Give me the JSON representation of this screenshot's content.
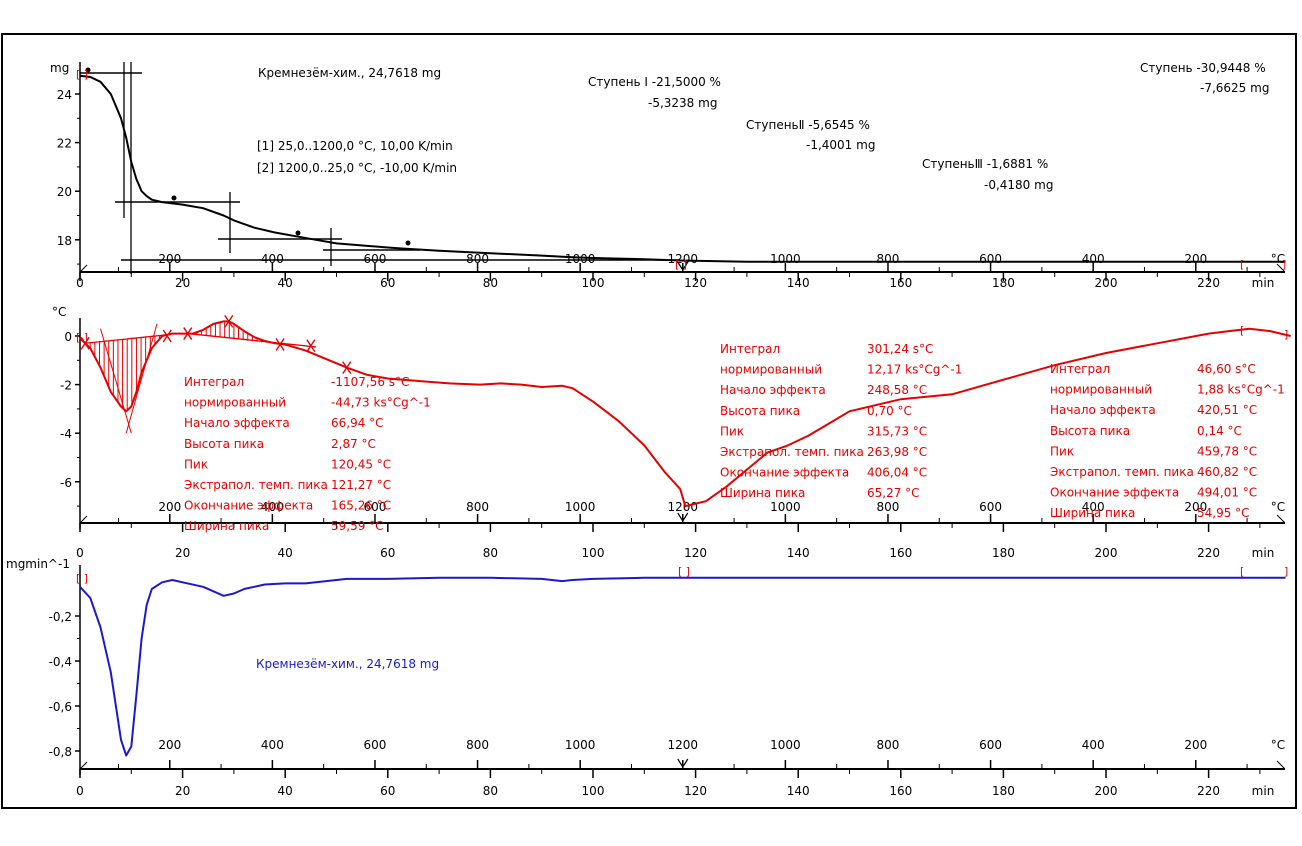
{
  "chart_data": [
    {
      "type": "line",
      "panel": "TG",
      "title": "Кремнезём-хим., 24,7618 mg",
      "ylabel": "mg",
      "xlabel": "min",
      "secondary_xlabel": "°C",
      "ylim": [
        16.6,
        25.2
      ],
      "xlim": [
        0,
        235
      ],
      "y_ticks": [
        {
          "v": 24,
          "label": "24"
        },
        {
          "v": 22,
          "label": "22"
        },
        {
          "v": 20,
          "label": "20"
        },
        {
          "v": 18,
          "label": "18"
        }
      ],
      "segments": [
        "[1] 25,0..1200,0 °C, 10,00 K/min",
        "[2] 1200,0..25,0 °C, -10,00 K/min"
      ],
      "steps": [
        {
          "label": "Ступень Ⅰ",
          "percent": "-21,5000 %",
          "mass": "-5,3238 mg"
        },
        {
          "label": "СтупеньⅡ",
          "percent": "-5,6545 %",
          "mass": "-1,4001 mg"
        },
        {
          "label": "СтупеньⅢ",
          "percent": "-1,6881 %",
          "mass": "-0,4180 mg"
        },
        {
          "label": "Ступень",
          "percent": "-30,9448 %",
          "mass": "-7,6625 mg"
        }
      ],
      "series": [
        {
          "name": "TG",
          "color": "#000000",
          "x": [
            0,
            2,
            4,
            6,
            8,
            9,
            10,
            11,
            12,
            13,
            14,
            16,
            18,
            20,
            24,
            28,
            30,
            34,
            38,
            42,
            46,
            50,
            56,
            62,
            70,
            80,
            90,
            96,
            100,
            110,
            117,
            130,
            160,
            200,
            235
          ],
          "y": [
            24.75,
            24.7,
            24.5,
            24.0,
            23.0,
            22.2,
            21.2,
            20.5,
            20.0,
            19.8,
            19.65,
            19.55,
            19.5,
            19.45,
            19.3,
            19.0,
            18.8,
            18.5,
            18.3,
            18.15,
            18.0,
            17.85,
            17.75,
            17.65,
            17.55,
            17.45,
            17.35,
            17.28,
            17.25,
            17.2,
            17.15,
            17.1,
            17.1,
            17.1,
            17.1
          ]
        }
      ]
    },
    {
      "type": "line",
      "panel": "DTA",
      "ylabel": "°C",
      "xlabel": "min",
      "secondary_xlabel": "°C",
      "ylim": [
        -7.8,
        1.0
      ],
      "xlim": [
        0,
        235
      ],
      "y_ticks": [
        {
          "v": 0,
          "label": "0"
        },
        {
          "v": -2,
          "label": "-2"
        },
        {
          "v": -4,
          "label": "-4"
        },
        {
          "v": -6,
          "label": "-6"
        }
      ],
      "series": [
        {
          "name": "DTA",
          "color": "#e60000",
          "x": [
            0,
            2,
            4,
            6,
            8,
            9,
            10,
            11,
            12,
            14,
            16,
            18,
            20,
            22,
            24,
            26,
            28,
            29,
            30,
            32,
            34,
            36,
            38,
            40,
            44,
            48,
            52,
            56,
            60,
            66,
            72,
            78,
            82,
            86,
            90,
            94,
            96,
            100,
            105,
            110,
            114,
            117,
            118,
            122,
            126,
            130,
            134,
            138,
            142,
            146,
            150,
            160,
            170,
            180,
            190,
            200,
            210,
            220,
            224,
            228,
            232,
            236
          ],
          "y": [
            -0.1,
            -0.5,
            -1.3,
            -2.3,
            -2.9,
            -3.1,
            -2.9,
            -2.3,
            -1.5,
            -0.5,
            0.0,
            0.1,
            0.1,
            0.1,
            0.25,
            0.5,
            0.6,
            0.6,
            0.5,
            0.2,
            -0.05,
            -0.2,
            -0.3,
            -0.35,
            -0.6,
            -0.95,
            -1.3,
            -1.6,
            -1.75,
            -1.85,
            -1.95,
            -2.0,
            -1.95,
            -2.0,
            -2.1,
            -2.05,
            -2.15,
            -2.7,
            -3.5,
            -4.5,
            -5.6,
            -6.3,
            -7.0,
            -6.8,
            -6.2,
            -5.5,
            -4.8,
            -4.5,
            -4.1,
            -3.6,
            -3.1,
            -2.6,
            -2.4,
            -1.8,
            -1.2,
            -0.7,
            -0.3,
            0.1,
            0.2,
            0.3,
            0.2,
            0.0
          ]
        }
      ],
      "peaks": [
        {
          "rows": [
            {
              "label": "Интеграл",
              "value": "-1107,56 s°C"
            },
            {
              "label": "  нормированный",
              "value": "-44,73 ks°Cg^-1"
            },
            {
              "label": "Начало эффекта",
              "value": "66,94 °C"
            },
            {
              "label": "Высота пика",
              "value": "2,87 °C"
            },
            {
              "label": "Пик",
              "value": "120,45 °C"
            },
            {
              "label": "Экстрапол. темп. пика",
              "value": "121,27 °C"
            },
            {
              "label": "Окончание эффекта",
              "value": "165,26 °C"
            },
            {
              "label": "Ширина пика",
              "value": "59,59 °C"
            }
          ]
        },
        {
          "rows": [
            {
              "label": "Интеграл",
              "value": "301,24 s°C"
            },
            {
              "label": "  нормированный",
              "value": "12,17 ks°Cg^-1"
            },
            {
              "label": "Начало эффекта",
              "value": "248,58 °C"
            },
            {
              "label": "Высота пика",
              "value": "0,70 °C"
            },
            {
              "label": "Пик",
              "value": "315,73 °C"
            },
            {
              "label": "Экстрапол. темп. пика",
              "value": "263,98 °C"
            },
            {
              "label": "Окончание эффекта",
              "value": "406,04 °C"
            },
            {
              "label": "Ширина пика",
              "value": "65,27 °C"
            }
          ]
        },
        {
          "rows": [
            {
              "label": "Интеграл",
              "value": "46,60 s°C"
            },
            {
              "label": "  нормированный",
              "value": "1,88 ks°Cg^-1"
            },
            {
              "label": "Начало эффекта",
              "value": "420,51 °C"
            },
            {
              "label": "Высота пика",
              "value": "0,14 °C"
            },
            {
              "label": "Пик",
              "value": "459,78 °C"
            },
            {
              "label": "Экстрапол. темп. пика",
              "value": "460,82 °C"
            },
            {
              "label": "Окончание эффекта",
              "value": "494,01 °C"
            },
            {
              "label": "Ширина пика",
              "value": "54,95 °C"
            }
          ]
        }
      ]
    },
    {
      "type": "line",
      "panel": "DTG",
      "title": "Кремнезём-хим., 24,7618 mg",
      "ylabel": "mgmin^-1",
      "xlabel": "min",
      "secondary_xlabel": "°C",
      "ylim": [
        -0.88,
        0.0
      ],
      "xlim": [
        0,
        235
      ],
      "y_ticks": [
        {
          "v": -0.2,
          "label": "-0,2"
        },
        {
          "v": -0.4,
          "label": "-0,4"
        },
        {
          "v": -0.6,
          "label": "-0,6"
        },
        {
          "v": -0.8,
          "label": "-0,8"
        }
      ],
      "series": [
        {
          "name": "DTG",
          "color": "#1a1acc",
          "x": [
            0,
            2,
            4,
            6,
            7,
            8,
            9,
            10,
            11,
            12,
            13,
            14,
            16,
            18,
            20,
            24,
            26,
            28,
            30,
            32,
            36,
            40,
            44,
            48,
            52,
            60,
            70,
            80,
            90,
            94,
            96,
            100,
            110,
            117,
            120,
            160,
            200,
            235
          ],
          "y": [
            -0.07,
            -0.12,
            -0.25,
            -0.45,
            -0.6,
            -0.75,
            -0.82,
            -0.78,
            -0.55,
            -0.3,
            -0.15,
            -0.08,
            -0.05,
            -0.04,
            -0.05,
            -0.07,
            -0.09,
            -0.11,
            -0.1,
            -0.08,
            -0.06,
            -0.055,
            -0.055,
            -0.045,
            -0.035,
            -0.035,
            -0.03,
            -0.03,
            -0.035,
            -0.045,
            -0.04,
            -0.035,
            -0.03,
            -0.03,
            -0.03,
            -0.03,
            -0.03,
            -0.03
          ]
        }
      ]
    }
  ],
  "x_axis": {
    "min_ticks": [
      {
        "v": 0,
        "label": "0"
      },
      {
        "v": 20,
        "label": "20"
      },
      {
        "v": 40,
        "label": "40"
      },
      {
        "v": 60,
        "label": "60"
      },
      {
        "v": 80,
        "label": "80"
      },
      {
        "v": 100,
        "label": "100"
      },
      {
        "v": 120,
        "label": "120"
      },
      {
        "v": 140,
        "label": "140"
      },
      {
        "v": 160,
        "label": "160"
      },
      {
        "v": 180,
        "label": "180"
      },
      {
        "v": 200,
        "label": "200"
      },
      {
        "v": 220,
        "label": "220"
      }
    ],
    "min_unit": "min",
    "temp_ticks": [
      {
        "v": 17.5,
        "label": "200"
      },
      {
        "v": 37.5,
        "label": "400"
      },
      {
        "v": 57.5,
        "label": "600"
      },
      {
        "v": 77.5,
        "label": "800"
      },
      {
        "v": 97.5,
        "label": "1000"
      },
      {
        "v": 117.5,
        "label": "1200"
      },
      {
        "v": 137.5,
        "label": "1000"
      },
      {
        "v": 157.5,
        "label": "800"
      },
      {
        "v": 177.5,
        "label": "600"
      },
      {
        "v": 197.5,
        "label": "400"
      },
      {
        "v": 217.5,
        "label": "200"
      }
    ],
    "temp_unit": "°C"
  }
}
